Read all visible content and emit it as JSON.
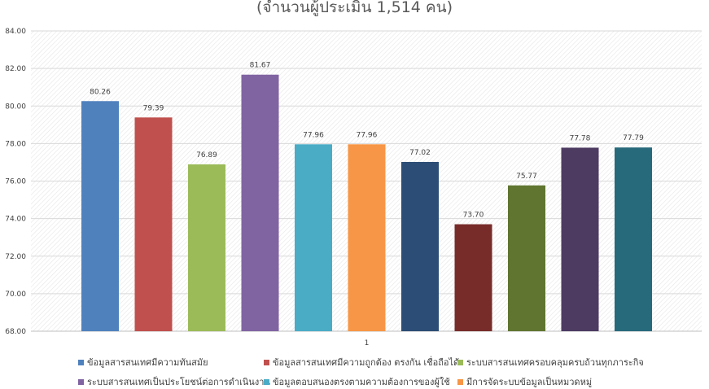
{
  "chart_data": {
    "type": "bar",
    "title": "(จำนวนผู้ประเมิน 1,514 คน)",
    "categories": [
      "1"
    ],
    "ylim": [
      68,
      84
    ],
    "yticks": [
      "68.00",
      "70.00",
      "72.00",
      "74.00",
      "76.00",
      "78.00",
      "80.00",
      "82.00",
      "84.00"
    ],
    "grid": true,
    "legend_position": "bottom",
    "series": [
      {
        "name": "ข้อมูลสารสนเทศมีความทันสมัย",
        "values": [
          80.26
        ],
        "label": "80.26",
        "color": "#4F81BD"
      },
      {
        "name": "ข้อมูลสารสนเทศมีความถูกต้อง ตรงกัน เชื่อถือได้",
        "values": [
          79.39
        ],
        "label": "79.39",
        "color": "#C0504D"
      },
      {
        "name": "ระบบสารสนเทศครอบคลุมครบถ้วนทุกภาระกิจ",
        "values": [
          76.89
        ],
        "label": "76.89",
        "color": "#9BBB59"
      },
      {
        "name": "ระบบสารสนเทศเป็นประโยชน์ต่อการดำเนินงาน",
        "values": [
          81.67
        ],
        "label": "81.67",
        "color": "#8064A2"
      },
      {
        "name": "ข้อมูลตอบสนองตรงตามความต้องการของผู้ใช้",
        "values": [
          77.96
        ],
        "label": "77.96",
        "color": "#4BACC6"
      },
      {
        "name": "มีการจัดระบบข้อมูลเป็นหมวดหมู่",
        "values": [
          77.96
        ],
        "label": "77.96",
        "color": "#F79646"
      },
      {
        "name": "",
        "values": [
          77.02
        ],
        "label": "77.02",
        "color": "#2C4D75"
      },
      {
        "name": "",
        "values": [
          73.7
        ],
        "label": "73.70",
        "color": "#772C2A"
      },
      {
        "name": "",
        "values": [
          75.77
        ],
        "label": "75.77",
        "color": "#5F7530"
      },
      {
        "name": "",
        "values": [
          77.78
        ],
        "label": "77.78",
        "color": "#4D3B62"
      },
      {
        "name": "",
        "values": [
          77.79
        ],
        "label": "77.79",
        "color": "#276A7C"
      }
    ]
  }
}
